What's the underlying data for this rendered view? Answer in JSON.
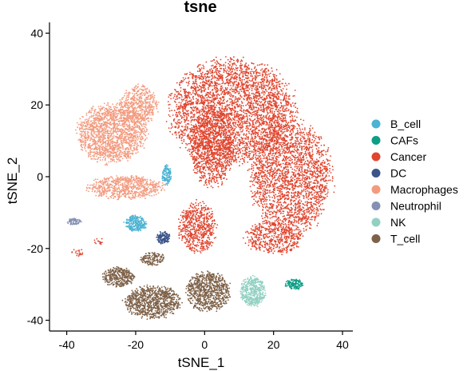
{
  "chart_data": {
    "type": "scatter",
    "title": "tsne",
    "xlabel": "tSNE_1",
    "ylabel": "tSNE_2",
    "xlim": [
      -45,
      43
    ],
    "ylim": [
      -43,
      43
    ],
    "xticks": [
      -40,
      -20,
      0,
      20,
      40
    ],
    "yticks": [
      -40,
      -20,
      0,
      20,
      40
    ],
    "grid": false,
    "legend_position": "right",
    "series": [
      {
        "name": "B_cell",
        "color": "#4BB3D3",
        "clusters": [
          {
            "cx": -20,
            "cy": -13,
            "rx": 3.5,
            "ry": 2.5,
            "n": 260
          },
          {
            "cx": -11,
            "cy": 0.5,
            "rx": 1.5,
            "ry": 3,
            "n": 120
          }
        ]
      },
      {
        "name": "CAFs",
        "color": "#0E9E86",
        "clusters": [
          {
            "cx": 26,
            "cy": -30,
            "rx": 3,
            "ry": 1.6,
            "n": 140
          }
        ]
      },
      {
        "name": "Cancer",
        "color": "#E0452E",
        "clusters": [
          {
            "cx": 8,
            "cy": 18,
            "rx": 20,
            "ry": 16,
            "n": 3400
          },
          {
            "cx": 25,
            "cy": 0,
            "rx": 13,
            "ry": 17,
            "n": 2200
          },
          {
            "cx": 2,
            "cy": 8,
            "rx": 7,
            "ry": 12,
            "n": 900
          },
          {
            "cx": -2,
            "cy": -14,
            "rx": 6,
            "ry": 8,
            "n": 600
          },
          {
            "cx": 20,
            "cy": -17,
            "rx": 9,
            "ry": 5,
            "n": 500
          },
          {
            "cx": -37,
            "cy": -21,
            "rx": 2,
            "ry": 1.2,
            "n": 20
          },
          {
            "cx": -31,
            "cy": -18,
            "rx": 2,
            "ry": 1,
            "n": 15
          }
        ]
      },
      {
        "name": "DC",
        "color": "#3C5488",
        "clusters": [
          {
            "cx": -12,
            "cy": -17,
            "rx": 2.2,
            "ry": 2,
            "n": 130
          }
        ]
      },
      {
        "name": "Macrophages",
        "color": "#F39B7F",
        "clusters": [
          {
            "cx": -27,
            "cy": 12,
            "rx": 11,
            "ry": 9,
            "n": 1600
          },
          {
            "cx": -19,
            "cy": 20,
            "rx": 6,
            "ry": 6,
            "n": 500
          },
          {
            "cx": -23,
            "cy": -3,
            "rx": 12,
            "ry": 3.5,
            "n": 700
          }
        ]
      },
      {
        "name": "Neutrophil",
        "color": "#8491B4",
        "clusters": [
          {
            "cx": -38,
            "cy": -12.5,
            "rx": 2.5,
            "ry": 1,
            "n": 70
          }
        ]
      },
      {
        "name": "NK",
        "color": "#91D1C2",
        "clusters": [
          {
            "cx": 14,
            "cy": -32,
            "rx": 4,
            "ry": 4.5,
            "n": 450
          }
        ]
      },
      {
        "name": "T_cell",
        "color": "#7E6148",
        "clusters": [
          {
            "cx": -15,
            "cy": -35,
            "rx": 9,
            "ry": 5,
            "n": 900
          },
          {
            "cx": 1,
            "cy": -32,
            "rx": 7,
            "ry": 6,
            "n": 800
          },
          {
            "cx": -25,
            "cy": -28,
            "rx": 5,
            "ry": 3,
            "n": 350
          },
          {
            "cx": -15,
            "cy": -23,
            "rx": 4,
            "ry": 2,
            "n": 150
          }
        ]
      }
    ]
  }
}
